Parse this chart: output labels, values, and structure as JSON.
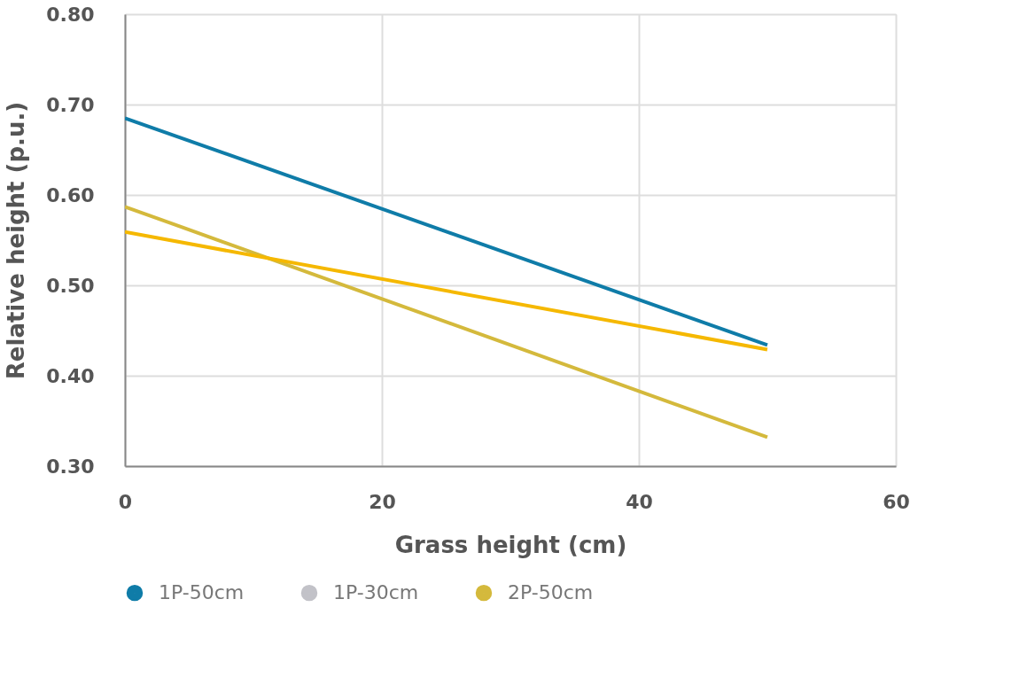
{
  "chart_data": {
    "type": "line",
    "xlabel": "Grass height (cm)",
    "ylabel": "Relative height (p.u.)",
    "x": [
      0,
      50
    ],
    "series": [
      {
        "name": "1P-50cm",
        "color": "#0f7ca8",
        "values": [
          0.685,
          0.434
        ]
      },
      {
        "name": "1P-30cm",
        "color": "#c2c2c8",
        "values": [
          null,
          null
        ]
      },
      {
        "name": "2P-50cm",
        "color": "#d4b93c",
        "values": [
          0.587,
          0.332
        ]
      },
      {
        "color": "#f5b800",
        "values": [
          0.559,
          0.429
        ]
      }
    ],
    "xlim": [
      0,
      60
    ],
    "xticks": [
      0,
      20,
      40,
      60
    ],
    "ylim": [
      0.3,
      0.8
    ],
    "yticks": [
      {
        "value": 0.3,
        "label": "0.30"
      },
      {
        "value": 0.4,
        "label": "0.40"
      },
      {
        "value": 0.5,
        "label": "0.50"
      },
      {
        "value": 0.6,
        "label": "0.60"
      },
      {
        "value": 0.7,
        "label": "0.70"
      },
      {
        "value": 0.8,
        "label": "0.80"
      }
    ],
    "grid": true,
    "legend": "bottom",
    "marker": "none",
    "line_style": "solid"
  }
}
